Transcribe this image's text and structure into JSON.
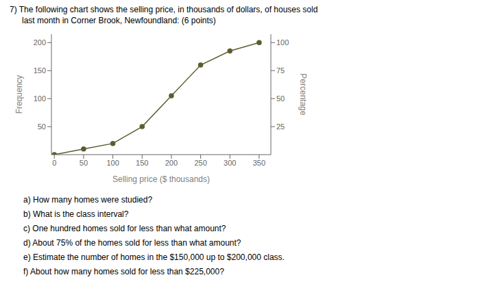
{
  "chart_data": {
    "type": "line",
    "title": "7)  The following chart shows the selling price, in thousands of dollars, of houses sold",
    "subtitle": "last month in Corner Brook, Newfoundland:  (6 points)",
    "x": [
      0,
      50,
      100,
      150,
      200,
      250,
      300,
      350
    ],
    "values": [
      0,
      10,
      20,
      50,
      105,
      160,
      185,
      200
    ],
    "color": "#5c5c30",
    "marker": "circle",
    "xlabel": "Selling price ($ thousands)",
    "ylabel": "Frequency",
    "y2label": "Percentage",
    "xlim": [
      -5,
      370
    ],
    "ylim": [
      0,
      215
    ],
    "y2lim": [
      0,
      107.5
    ],
    "xticks": [
      0,
      50,
      100,
      150,
      200,
      250,
      300,
      350
    ],
    "yticks": [
      50,
      100,
      150,
      200
    ],
    "y2ticks": [
      25,
      50,
      75,
      100
    ],
    "grid": false,
    "annotations": [
      "a)  How many homes were studied?",
      "b)  What is the class interval?",
      "c)  One hundred homes sold for less than what amount?",
      "d)  About 75% of the homes sold for less than what amount?",
      "e)  Estimate the number of homes in the $150,000 up to $200,000 class.",
      "f)  About how many homes sold for less than $225,000?"
    ]
  }
}
